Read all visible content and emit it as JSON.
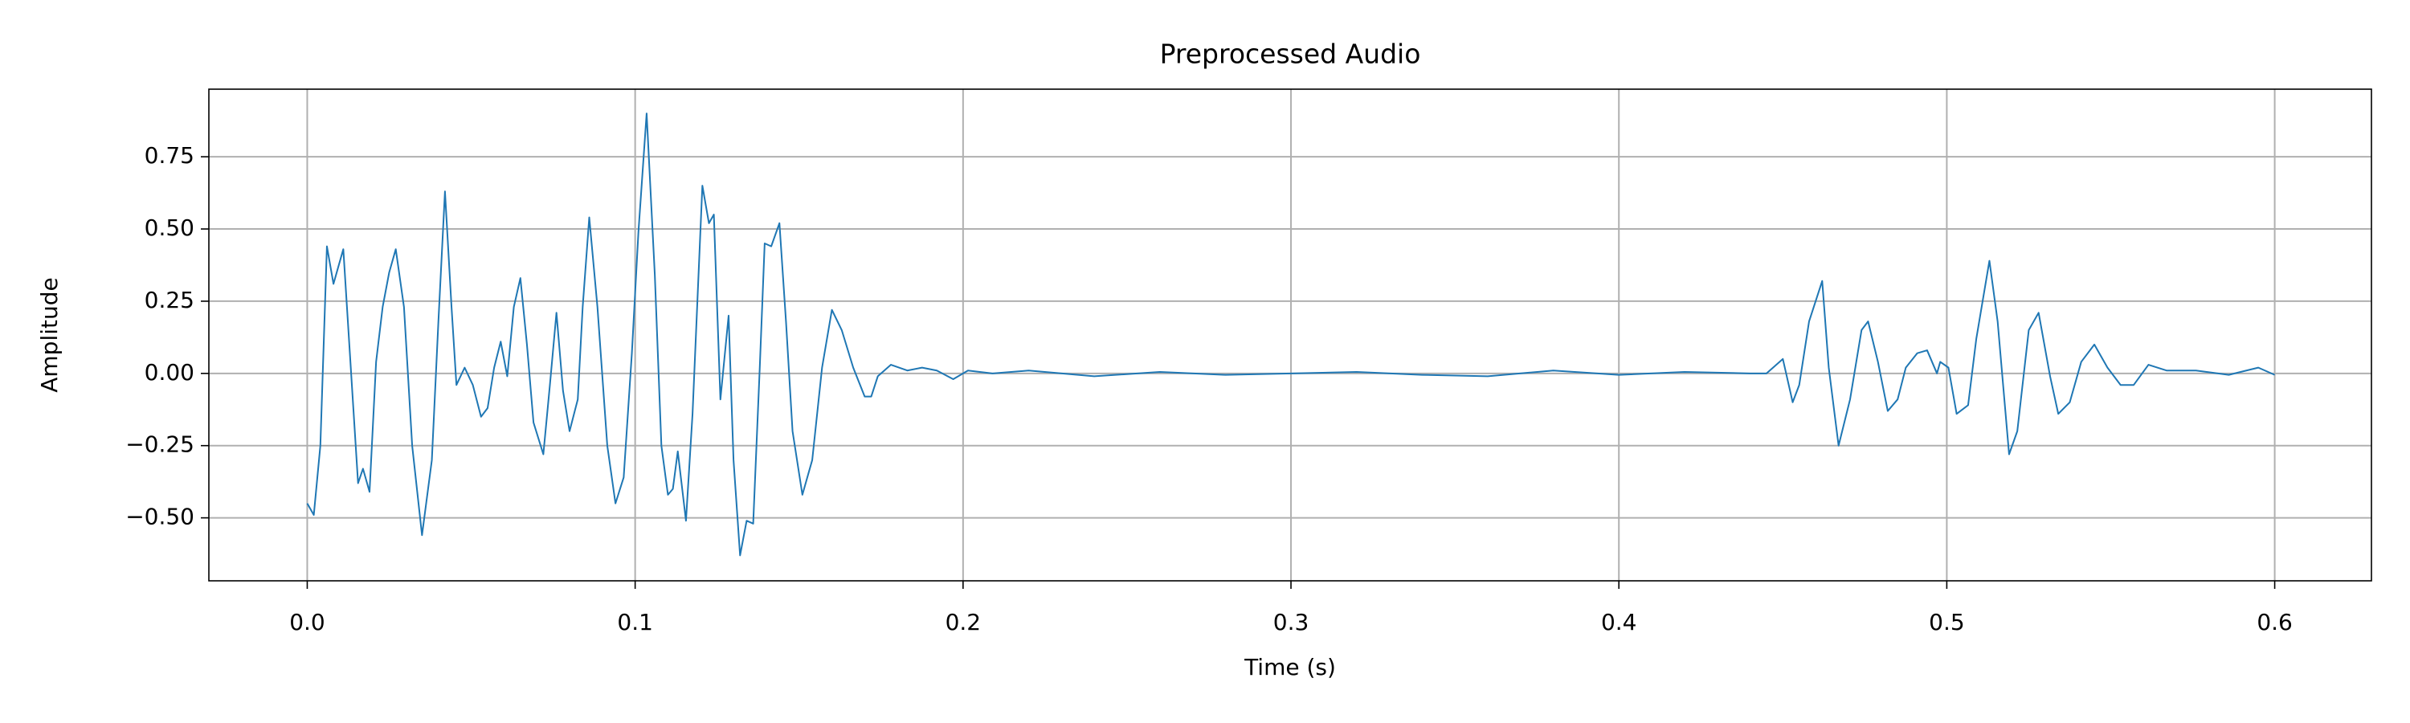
{
  "chart_data": {
    "type": "line",
    "title": "Preprocessed Audio",
    "xlabel": "Time (s)",
    "ylabel": "Amplitude",
    "color": "#1f77b4",
    "grid": true,
    "xlim": [
      -0.03,
      0.6295
    ],
    "ylim": [
      -0.718,
      0.984
    ],
    "xticks": [
      {
        "value": 0,
        "label": "0.0"
      },
      0.1,
      0.2,
      0.3,
      0.4,
      0.5,
      0.6
    ],
    "yticks": [
      {
        "value": -0.5,
        "label": "−0.50"
      },
      {
        "value": -0.25,
        "label": "−0.25"
      },
      {
        "value": 0,
        "label": "0.00"
      },
      {
        "value": 0.25,
        "label": "0.25"
      },
      {
        "value": 0.5,
        "label": "0.50"
      },
      {
        "value": 0.75,
        "label": "0.75"
      }
    ],
    "x": [
      0,
      0.002,
      0.004,
      0.006,
      0.008,
      0.011,
      0.013,
      0.0155,
      0.017,
      0.019,
      0.021,
      0.023,
      0.025,
      0.027,
      0.0295,
      0.032,
      0.035,
      0.038,
      0.04,
      0.042,
      0.044,
      0.0455,
      0.048,
      0.0505,
      0.053,
      0.055,
      0.057,
      0.059,
      0.061,
      0.063,
      0.065,
      0.067,
      0.069,
      0.072,
      0.074,
      0.076,
      0.078,
      0.08,
      0.0825,
      0.084,
      0.086,
      0.0885,
      0.0915,
      0.094,
      0.0965,
      0.099,
      0.101,
      0.1035,
      0.106,
      0.108,
      0.11,
      0.1115,
      0.113,
      0.1155,
      0.1175,
      0.1205,
      0.1225,
      0.124,
      0.126,
      0.1285,
      0.13,
      0.132,
      0.134,
      0.136,
      0.138,
      0.1395,
      0.1415,
      0.144,
      0.146,
      0.148,
      0.151,
      0.154,
      0.157,
      0.16,
      0.163,
      0.1665,
      0.17,
      0.172,
      0.174,
      0.178,
      0.183,
      0.1875,
      0.192,
      0.197,
      0.2015,
      0.209,
      0.22,
      0.24,
      0.26,
      0.28,
      0.3,
      0.32,
      0.34,
      0.36,
      0.38,
      0.4,
      0.42,
      0.44,
      0.445,
      0.45,
      0.453,
      0.455,
      0.458,
      0.462,
      0.464,
      0.467,
      0.4705,
      0.474,
      0.476,
      0.479,
      0.482,
      0.485,
      0.4875,
      0.491,
      0.494,
      0.497,
      0.498,
      0.5005,
      0.503,
      0.5065,
      0.509,
      0.513,
      0.5155,
      0.519,
      0.5215,
      0.525,
      0.528,
      0.5315,
      0.534,
      0.5375,
      0.541,
      0.545,
      0.549,
      0.553,
      0.557,
      0.5615,
      0.567,
      0.576,
      0.586,
      0.595,
      0.6
    ],
    "values": [
      -0.45,
      -0.49,
      -0.25,
      0.44,
      0.31,
      0.43,
      0.07,
      -0.38,
      -0.33,
      -0.41,
      0.04,
      0.23,
      0.35,
      0.43,
      0.23,
      -0.25,
      -0.56,
      -0.3,
      0.18,
      0.63,
      0.23,
      -0.04,
      0.02,
      -0.04,
      -0.15,
      -0.12,
      0.02,
      0.11,
      -0.01,
      0.23,
      0.33,
      0.1,
      -0.17,
      -0.28,
      -0.04,
      0.21,
      -0.06,
      -0.2,
      -0.09,
      0.23,
      0.54,
      0.23,
      -0.25,
      -0.45,
      -0.36,
      0.07,
      0.49,
      0.9,
      0.34,
      -0.25,
      -0.42,
      -0.4,
      -0.27,
      -0.51,
      -0.14,
      0.65,
      0.52,
      0.55,
      -0.09,
      0.2,
      -0.3,
      -0.63,
      -0.51,
      -0.52,
      0.02,
      0.45,
      0.44,
      0.52,
      0.18,
      -0.2,
      -0.42,
      -0.3,
      0.02,
      0.22,
      0.15,
      0.02,
      -0.08,
      -0.08,
      -0.01,
      0.03,
      0.01,
      0.02,
      0.01,
      -0.02,
      0.01,
      0,
      0.01,
      -0.01,
      0.005,
      -0.005,
      0,
      0.005,
      -0.005,
      -0.01,
      0.01,
      -0.005,
      0.005,
      0,
      0,
      0.05,
      -0.1,
      -0.04,
      0.18,
      0.32,
      0.02,
      -0.25,
      -0.09,
      0.15,
      0.18,
      0.04,
      -0.13,
      -0.09,
      0.02,
      0.07,
      0.08,
      0,
      0.04,
      0.02,
      -0.14,
      -0.11,
      0.12,
      0.39,
      0.18,
      -0.28,
      -0.2,
      0.15,
      0.21,
      -0.01,
      -0.14,
      -0.1,
      0.04,
      0.1,
      0.02,
      -0.04,
      -0.04,
      0.03,
      0.01,
      0.01,
      -0.005,
      0.02,
      -0.005
    ]
  }
}
